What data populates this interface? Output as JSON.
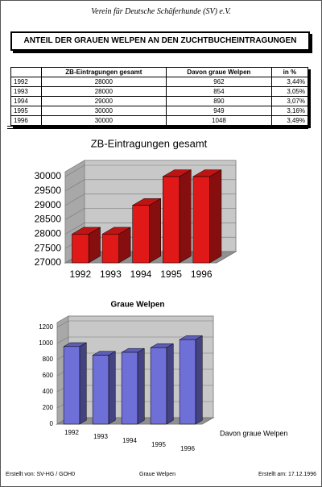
{
  "header": "Verein für Deutsche Schäferhunde (SV) e.V.",
  "title": "ANTEIL DER GRAUEN WELPEN AN DEN ZUCHTBUCHEINTRAGUNGEN",
  "table": {
    "columns": [
      "ZB-Eintragungen gesamt",
      "Davon graue Welpen",
      "in %"
    ],
    "rows": [
      [
        "1992",
        "28000",
        "962",
        "3,44%"
      ],
      [
        "1993",
        "28000",
        "854",
        "3,05%"
      ],
      [
        "1994",
        "29000",
        "890",
        "3,07%"
      ],
      [
        "1995",
        "30000",
        "949",
        "3,16%"
      ],
      [
        "1996",
        "30000",
        "1048",
        "3,49%"
      ]
    ]
  },
  "chart_data": [
    {
      "type": "bar",
      "title": "ZB-Eintragungen gesamt",
      "categories": [
        "1992",
        "1993",
        "1994",
        "1995",
        "1996"
      ],
      "values": [
        28000,
        28000,
        29000,
        30000,
        30000
      ],
      "color": "#e01818",
      "ylim": [
        27000,
        30000
      ],
      "yticks": [
        27000,
        27500,
        28000,
        28500,
        29000,
        29500,
        30000
      ],
      "grid": true
    },
    {
      "type": "bar",
      "title": "Graue Welpen",
      "categories": [
        "1992",
        "1993",
        "1994",
        "1995",
        "1996"
      ],
      "series": [
        {
          "name": "Davon graue Welpen",
          "color": "#6f6fd8",
          "values": [
            962,
            854,
            890,
            949,
            1048
          ]
        }
      ],
      "ylim": [
        0,
        1200
      ],
      "yticks": [
        0,
        200,
        400,
        600,
        800,
        1000,
        1200
      ],
      "grid": true
    }
  ],
  "footer": {
    "left": "Erstellt von: SV-HG / GOH0",
    "center": "Graue Welpen",
    "right": "Erstellt am: 17.12.1996"
  }
}
